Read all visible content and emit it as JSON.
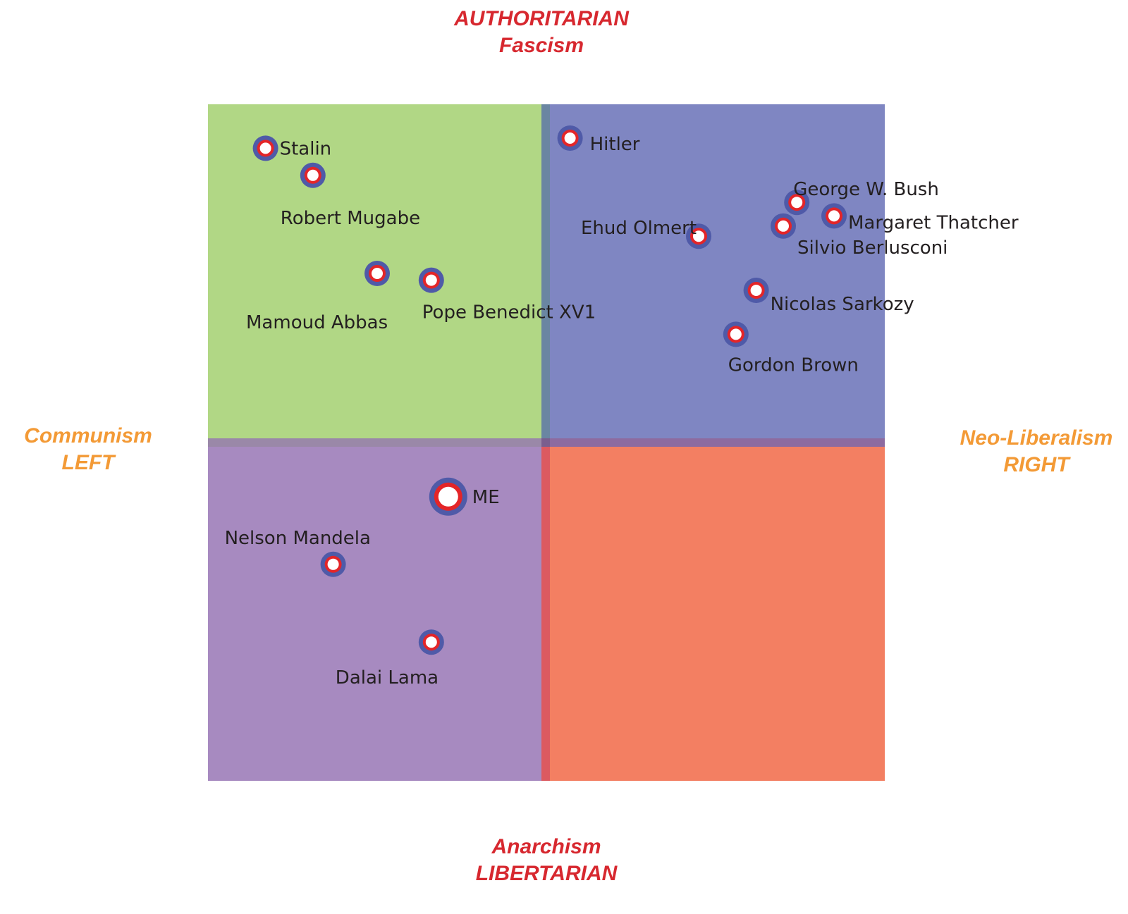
{
  "chart_data": {
    "type": "scatter",
    "title": "",
    "axes": {
      "top": [
        "AUTHORITARIAN",
        "Fascism"
      ],
      "bottom": [
        "Anarchism",
        "LIBERTARIAN"
      ],
      "left": [
        "Communism",
        "LEFT"
      ],
      "right": [
        "Neo-Liberalism",
        "RIGHT"
      ]
    },
    "xlim": [
      -10,
      10
    ],
    "ylim": [
      -10,
      10
    ],
    "grid": false,
    "quadrant_colors": {
      "top_left": "#b1d785",
      "top_right": "#7f86c2",
      "bottom_left": "#a78ac0",
      "bottom_right": "#f37f62"
    },
    "marker_colors": {
      "outer": "#4f5aa8",
      "ring": "#e42528",
      "center": "#ffffff"
    },
    "points": [
      {
        "name": "Stalin",
        "x": -8.3,
        "y": 8.7
      },
      {
        "name": "Robert Mugabe",
        "x": -6.9,
        "y": 7.9
      },
      {
        "name": "Mamoud Abbas",
        "x": -5.0,
        "y": 5.0
      },
      {
        "name": "Pope Benedict XV1",
        "x": -3.4,
        "y": 4.8
      },
      {
        "name": "Hitler",
        "x": 0.7,
        "y": 9.0
      },
      {
        "name": "Ehud Olmert",
        "x": 4.5,
        "y": 6.1
      },
      {
        "name": "George W. Bush",
        "x": 7.4,
        "y": 7.1
      },
      {
        "name": "Margaret Thatcher",
        "x": 8.5,
        "y": 6.7
      },
      {
        "name": "Silvio Berlusconi",
        "x": 7.0,
        "y": 6.4
      },
      {
        "name": "Nicolas Sarkozy",
        "x": 6.2,
        "y": 4.5
      },
      {
        "name": "Gordon Brown",
        "x": 5.6,
        "y": 3.2
      },
      {
        "name": "ME",
        "x": -2.9,
        "y": -1.6,
        "highlight": true
      },
      {
        "name": "Nelson Mandela",
        "x": -6.3,
        "y": -3.6
      },
      {
        "name": "Dalai Lama",
        "x": -3.4,
        "y": -5.9
      }
    ]
  }
}
